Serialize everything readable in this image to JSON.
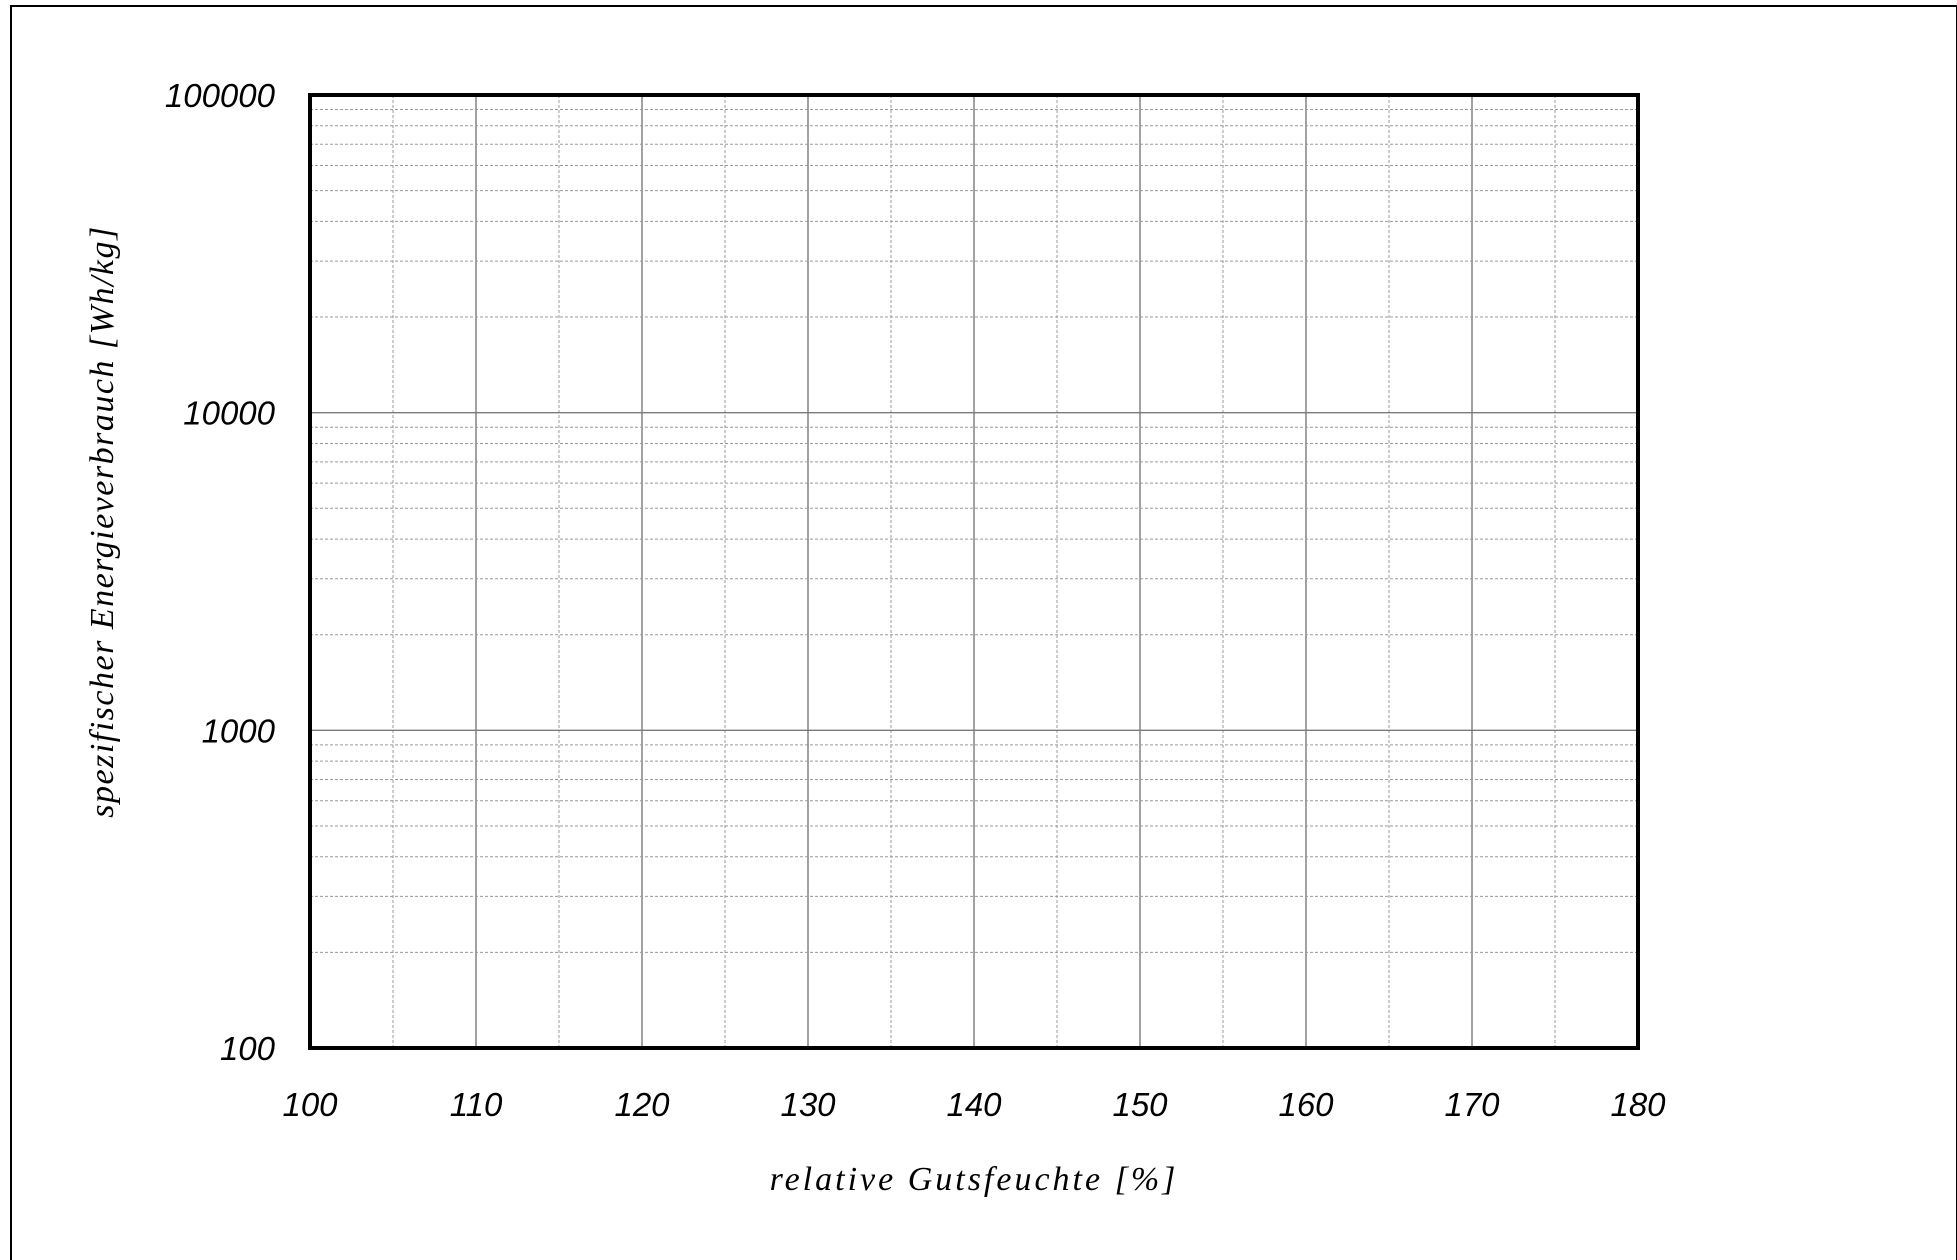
{
  "chart_data": {
    "type": "line",
    "title": "",
    "xlabel": "relative Gutsfeuchte [%]",
    "ylabel": "spezifischer Energieverbrauch [Wh/kg]",
    "x_ticks": [
      "100",
      "110",
      "120",
      "130",
      "140",
      "150",
      "160",
      "170",
      "180"
    ],
    "y_ticks": [
      "100",
      "1000",
      "10000",
      "100000"
    ],
    "xlim": [
      100,
      180
    ],
    "ylim": [
      100,
      100000
    ],
    "y_scale": "log",
    "grid": true,
    "series": []
  }
}
